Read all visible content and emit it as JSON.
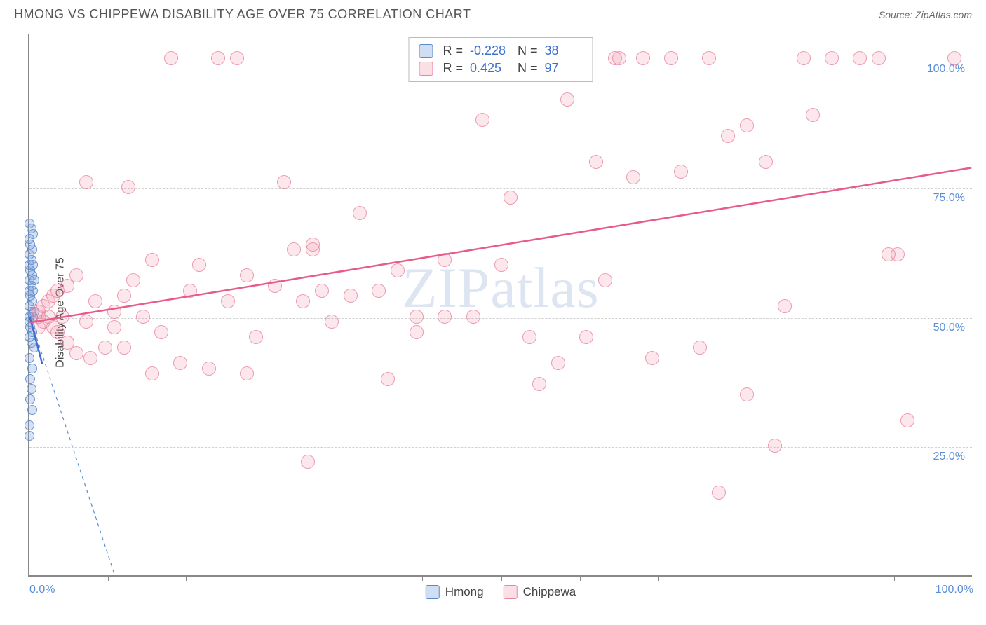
{
  "header": {
    "title": "HMONG VS CHIPPEWA DISABILITY AGE OVER 75 CORRELATION CHART",
    "source": "Source: ZipAtlas.com"
  },
  "watermark": "ZIPatlas",
  "chart": {
    "type": "scatter",
    "ylabel": "Disability Age Over 75",
    "xlim": [
      0,
      100
    ],
    "ylim": [
      0,
      105
    ],
    "background_color": "#ffffff",
    "grid_color": "#d0d0d0",
    "axis_color": "#888888",
    "tick_label_color": "#5b8dd6",
    "yticks": [
      {
        "v": 25,
        "label": "25.0%"
      },
      {
        "v": 50,
        "label": "50.0%"
      },
      {
        "v": 75,
        "label": "75.0%"
      },
      {
        "v": 100,
        "label": "100.0%"
      }
    ],
    "xticks_major": [
      0,
      100
    ],
    "xtick_labels": [
      {
        "v": 0,
        "label": "0.0%"
      },
      {
        "v": 100,
        "label": "100.0%"
      }
    ],
    "xticks_minor": [
      8.3,
      16.6,
      25,
      33.3,
      41.6,
      50,
      58.3,
      66.6,
      75,
      83.3,
      91.6
    ],
    "series": [
      {
        "name": "Hmong",
        "color_fill": "rgba(120,160,220,0.30)",
        "color_stroke": "rgba(80,130,200,0.8)",
        "marker_size": 14,
        "R": "-0.228",
        "N": "38",
        "trend": {
          "x1": 0,
          "y1": 50,
          "x2": 9,
          "y2": 0,
          "dashed": true,
          "color": "#5b8dd6",
          "width": 1.2
        },
        "trend_solid": {
          "x1": 0,
          "y1": 50,
          "x2": 1.3,
          "y2": 41,
          "color": "#3b6fd0",
          "width": 2.5
        },
        "points": [
          {
            "x": 0.0,
            "y": 27
          },
          {
            "x": 0.0,
            "y": 29
          },
          {
            "x": 0.2,
            "y": 36
          },
          {
            "x": 0.1,
            "y": 38
          },
          {
            "x": 0.3,
            "y": 40
          },
          {
            "x": 0.0,
            "y": 42
          },
          {
            "x": 0.2,
            "y": 45
          },
          {
            "x": 0.0,
            "y": 46
          },
          {
            "x": 0.3,
            "y": 47
          },
          {
            "x": 0.1,
            "y": 48
          },
          {
            "x": 0.0,
            "y": 49
          },
          {
            "x": 0.4,
            "y": 50
          },
          {
            "x": 0.0,
            "y": 50
          },
          {
            "x": 0.5,
            "y": 51
          },
          {
            "x": 0.2,
            "y": 51
          },
          {
            "x": 0.0,
            "y": 52
          },
          {
            "x": 0.3,
            "y": 53
          },
          {
            "x": 0.1,
            "y": 54
          },
          {
            "x": 0.4,
            "y": 55
          },
          {
            "x": 0.0,
            "y": 55
          },
          {
            "x": 0.2,
            "y": 56
          },
          {
            "x": 0.5,
            "y": 57
          },
          {
            "x": 0.0,
            "y": 57
          },
          {
            "x": 0.3,
            "y": 58
          },
          {
            "x": 0.1,
            "y": 59
          },
          {
            "x": 0.0,
            "y": 60
          },
          {
            "x": 0.4,
            "y": 60
          },
          {
            "x": 0.2,
            "y": 61
          },
          {
            "x": 0.0,
            "y": 62
          },
          {
            "x": 0.3,
            "y": 63
          },
          {
            "x": 0.1,
            "y": 64
          },
          {
            "x": 0.0,
            "y": 65
          },
          {
            "x": 0.4,
            "y": 66
          },
          {
            "x": 0.2,
            "y": 67
          },
          {
            "x": 0.0,
            "y": 68
          },
          {
            "x": 0.3,
            "y": 32
          },
          {
            "x": 0.1,
            "y": 34
          },
          {
            "x": 0.5,
            "y": 44
          }
        ]
      },
      {
        "name": "Chippewa",
        "color_fill": "rgba(240,150,170,0.22)",
        "color_stroke": "rgba(230,120,150,0.7)",
        "marker_size": 20,
        "R": "0.425",
        "N": "97",
        "trend": {
          "x1": 0,
          "y1": 49,
          "x2": 100,
          "y2": 79,
          "dashed": false,
          "color": "#e85a8a",
          "width": 2.5
        },
        "points": [
          {
            "x": 1,
            "y": 48
          },
          {
            "x": 1,
            "y": 50
          },
          {
            "x": 1,
            "y": 51
          },
          {
            "x": 1.5,
            "y": 52
          },
          {
            "x": 1.5,
            "y": 49
          },
          {
            "x": 2,
            "y": 50
          },
          {
            "x": 2,
            "y": 53
          },
          {
            "x": 2.5,
            "y": 48
          },
          {
            "x": 2.5,
            "y": 54
          },
          {
            "x": 3,
            "y": 47
          },
          {
            "x": 3,
            "y": 55
          },
          {
            "x": 3.5,
            "y": 50
          },
          {
            "x": 4,
            "y": 56
          },
          {
            "x": 4,
            "y": 45
          },
          {
            "x": 5,
            "y": 58
          },
          {
            "x": 5,
            "y": 43
          },
          {
            "x": 6,
            "y": 49
          },
          {
            "x": 6,
            "y": 76
          },
          {
            "x": 6.5,
            "y": 42
          },
          {
            "x": 7,
            "y": 53
          },
          {
            "x": 8,
            "y": 44
          },
          {
            "x": 9,
            "y": 51
          },
          {
            "x": 9,
            "y": 48
          },
          {
            "x": 10,
            "y": 54
          },
          {
            "x": 10,
            "y": 44
          },
          {
            "x": 10.5,
            "y": 75
          },
          {
            "x": 11,
            "y": 57
          },
          {
            "x": 12,
            "y": 50
          },
          {
            "x": 13,
            "y": 39
          },
          {
            "x": 13,
            "y": 61
          },
          {
            "x": 14,
            "y": 47
          },
          {
            "x": 15,
            "y": 100
          },
          {
            "x": 16,
            "y": 41
          },
          {
            "x": 17,
            "y": 55
          },
          {
            "x": 18,
            "y": 60
          },
          {
            "x": 19,
            "y": 40
          },
          {
            "x": 20,
            "y": 100
          },
          {
            "x": 21,
            "y": 53
          },
          {
            "x": 22,
            "y": 100
          },
          {
            "x": 23,
            "y": 39
          },
          {
            "x": 23,
            "y": 58
          },
          {
            "x": 24,
            "y": 46
          },
          {
            "x": 26,
            "y": 56
          },
          {
            "x": 27,
            "y": 76
          },
          {
            "x": 28,
            "y": 63
          },
          {
            "x": 29,
            "y": 53
          },
          {
            "x": 29.5,
            "y": 22
          },
          {
            "x": 30,
            "y": 64
          },
          {
            "x": 30,
            "y": 63
          },
          {
            "x": 31,
            "y": 55
          },
          {
            "x": 32,
            "y": 49
          },
          {
            "x": 34,
            "y": 54
          },
          {
            "x": 35,
            "y": 70
          },
          {
            "x": 37,
            "y": 55
          },
          {
            "x": 38,
            "y": 38
          },
          {
            "x": 39,
            "y": 59
          },
          {
            "x": 41,
            "y": 50
          },
          {
            "x": 41,
            "y": 47
          },
          {
            "x": 44,
            "y": 50
          },
          {
            "x": 44,
            "y": 61
          },
          {
            "x": 47,
            "y": 50
          },
          {
            "x": 48,
            "y": 88
          },
          {
            "x": 50,
            "y": 60
          },
          {
            "x": 51,
            "y": 73
          },
          {
            "x": 52,
            "y": 100
          },
          {
            "x": 53,
            "y": 46
          },
          {
            "x": 54,
            "y": 37
          },
          {
            "x": 56,
            "y": 41
          },
          {
            "x": 57,
            "y": 92
          },
          {
            "x": 59,
            "y": 46
          },
          {
            "x": 60,
            "y": 80
          },
          {
            "x": 61,
            "y": 57
          },
          {
            "x": 62,
            "y": 100
          },
          {
            "x": 62.5,
            "y": 100
          },
          {
            "x": 64,
            "y": 77
          },
          {
            "x": 65,
            "y": 100
          },
          {
            "x": 66,
            "y": 42
          },
          {
            "x": 68,
            "y": 100
          },
          {
            "x": 69,
            "y": 78
          },
          {
            "x": 71,
            "y": 44
          },
          {
            "x": 72,
            "y": 100
          },
          {
            "x": 73,
            "y": 16
          },
          {
            "x": 74,
            "y": 85
          },
          {
            "x": 76,
            "y": 35
          },
          {
            "x": 76,
            "y": 87
          },
          {
            "x": 78,
            "y": 80
          },
          {
            "x": 79,
            "y": 25
          },
          {
            "x": 80,
            "y": 52
          },
          {
            "x": 82,
            "y": 100
          },
          {
            "x": 83,
            "y": 89
          },
          {
            "x": 85,
            "y": 100
          },
          {
            "x": 88,
            "y": 100
          },
          {
            "x": 90,
            "y": 100
          },
          {
            "x": 91,
            "y": 62
          },
          {
            "x": 92,
            "y": 62
          },
          {
            "x": 93,
            "y": 30
          },
          {
            "x": 98,
            "y": 100
          }
        ]
      }
    ]
  },
  "legend_top": {
    "rows": [
      {
        "swatch": "blue",
        "R_label": "R =",
        "R": "-0.228",
        "N_label": "N =",
        "N": "38"
      },
      {
        "swatch": "pink",
        "R_label": "R =",
        "R": "0.425",
        "N_label": "N =",
        "N": "97"
      }
    ]
  },
  "legend_bottom": {
    "items": [
      {
        "swatch": "blue",
        "label": "Hmong"
      },
      {
        "swatch": "pink",
        "label": "Chippewa"
      }
    ]
  }
}
